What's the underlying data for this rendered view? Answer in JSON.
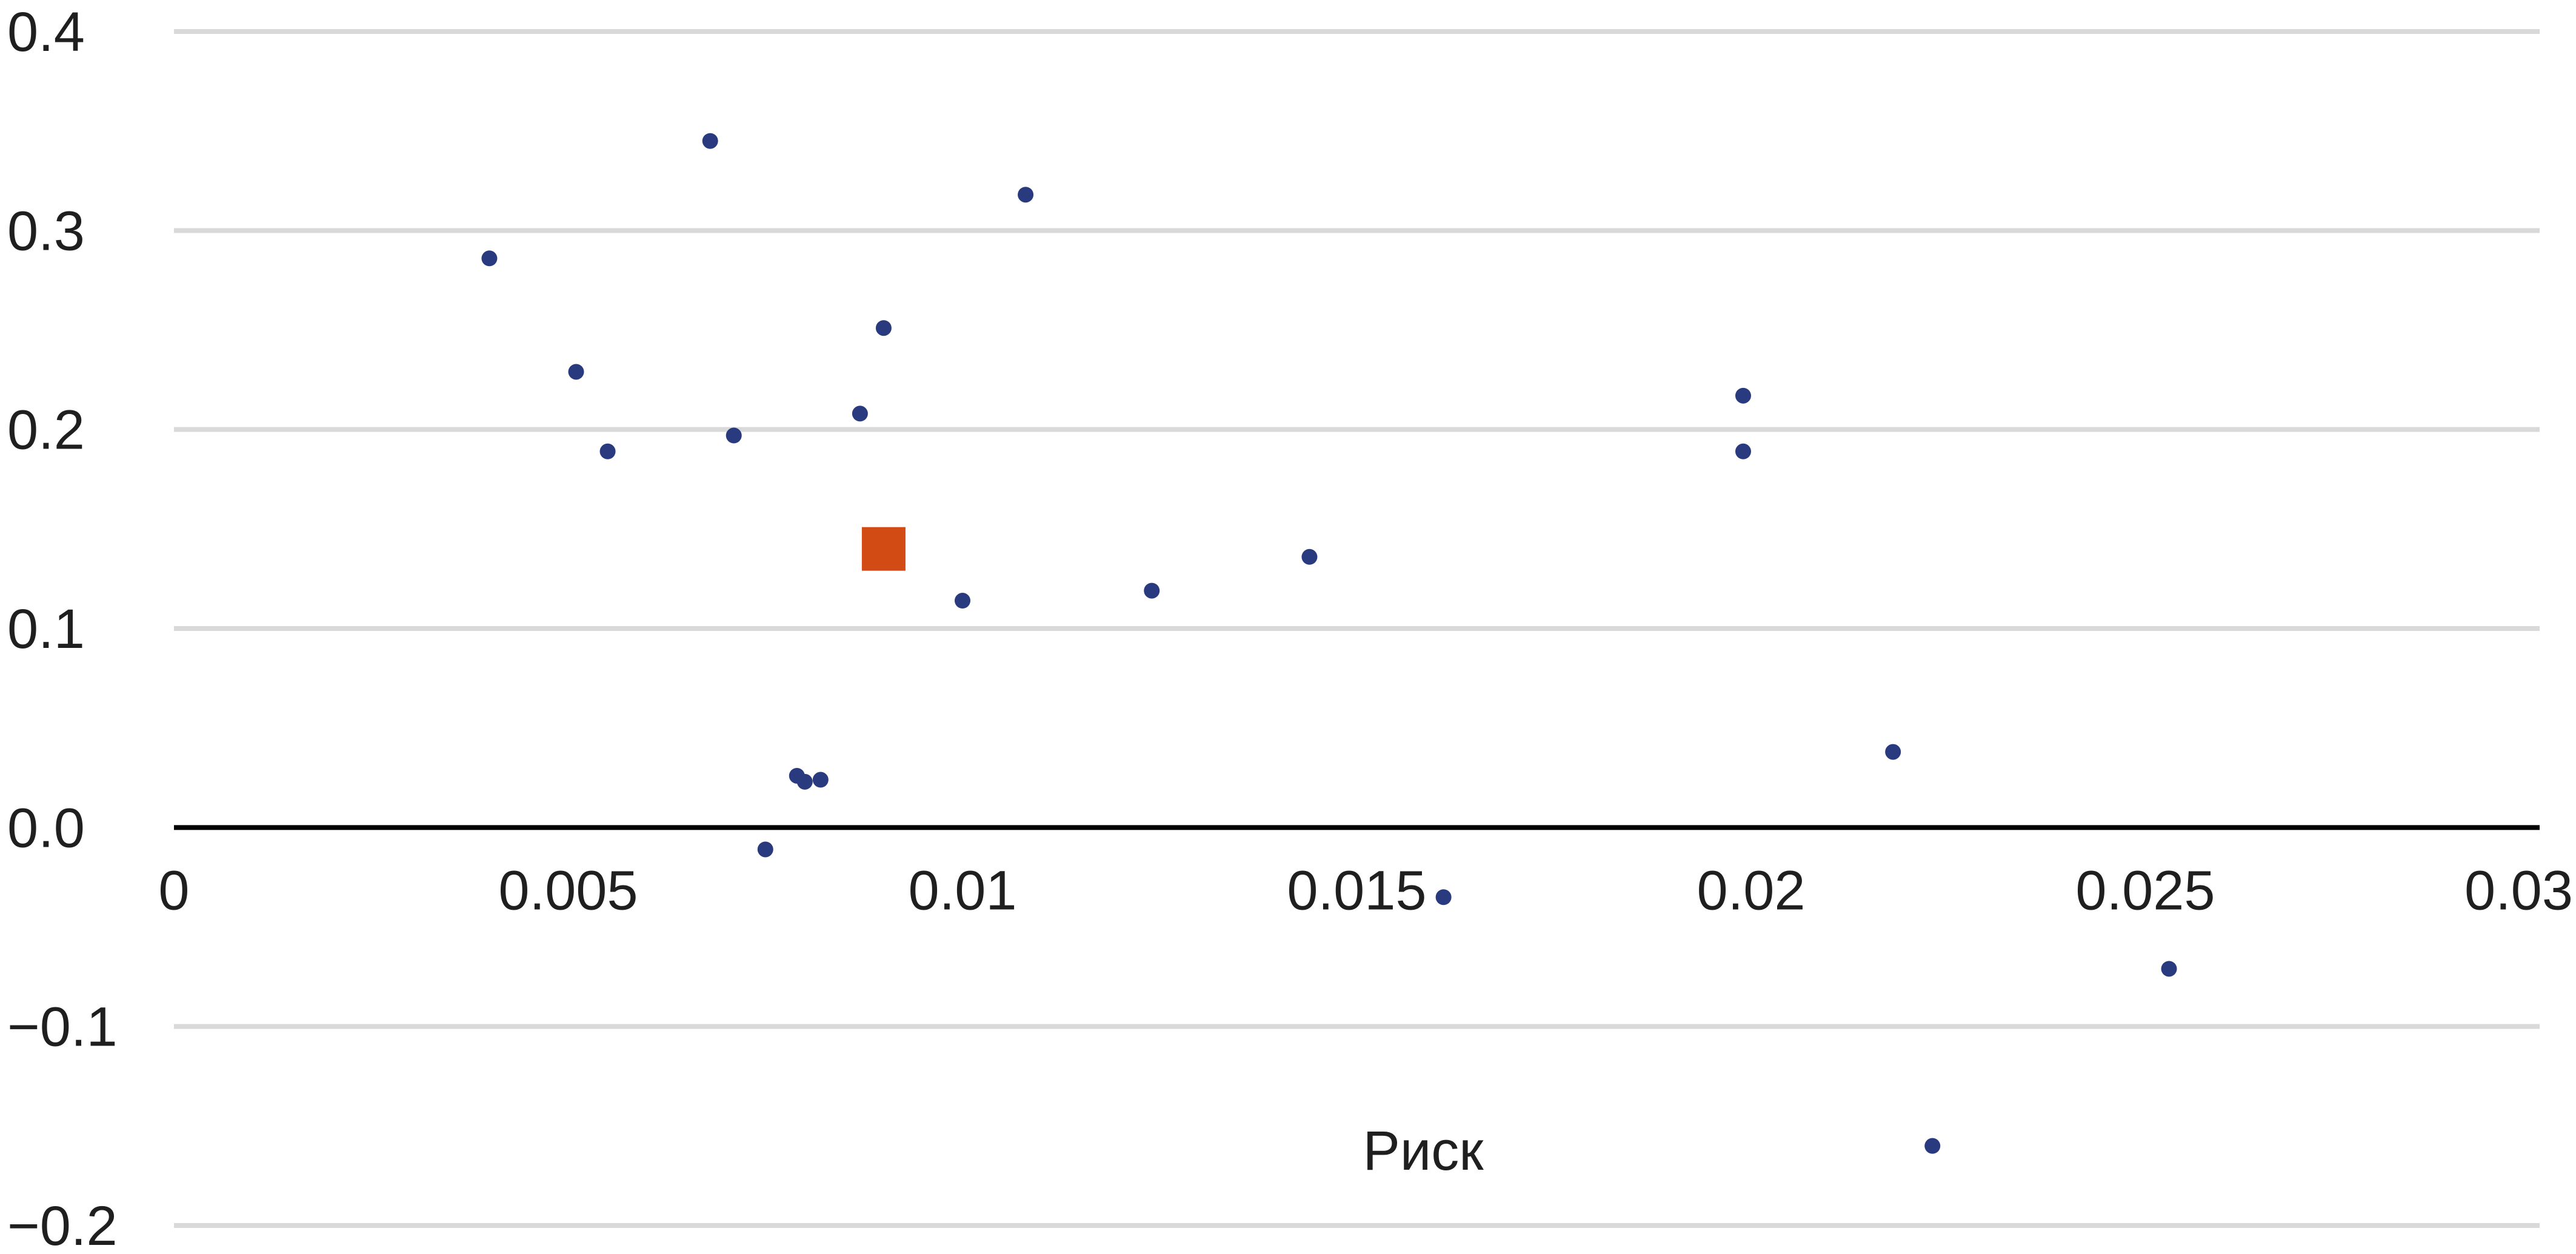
{
  "chart_data": {
    "type": "scatter",
    "title": "",
    "xlabel": "Риск",
    "ylabel": "",
    "xlim": [
      0,
      0.03
    ],
    "ylim": [
      -0.2,
      0.4
    ],
    "x_ticks": [
      0,
      0.005,
      0.01,
      0.015,
      0.02,
      0.025,
      0.03
    ],
    "x_tick_labels": [
      "0",
      "0.005",
      "0.01",
      "0.015",
      "0.02",
      "0.025",
      "0.03"
    ],
    "y_ticks": [
      0.4,
      0.3,
      0.2,
      0.1,
      0.0,
      -0.1,
      -0.2
    ],
    "y_tick_labels": [
      "0.4",
      "0.3",
      "0.2",
      "0.1",
      "0.0",
      "−0.1",
      "−0.2"
    ],
    "grid": true,
    "legend": "none",
    "series": [
      {
        "marker": "circle",
        "color": "#2a3a7e",
        "points": [
          {
            "x": 0.004,
            "y": 0.286
          },
          {
            "x": 0.0051,
            "y": 0.229
          },
          {
            "x": 0.0055,
            "y": 0.189
          },
          {
            "x": 0.0068,
            "y": 0.345
          },
          {
            "x": 0.0071,
            "y": 0.197
          },
          {
            "x": 0.0075,
            "y": -0.011
          },
          {
            "x": 0.0079,
            "y": 0.026
          },
          {
            "x": 0.008,
            "y": 0.023
          },
          {
            "x": 0.0082,
            "y": 0.024
          },
          {
            "x": 0.0087,
            "y": 0.208
          },
          {
            "x": 0.009,
            "y": 0.251
          },
          {
            "x": 0.01,
            "y": 0.114
          },
          {
            "x": 0.0108,
            "y": 0.318
          },
          {
            "x": 0.0124,
            "y": 0.119
          },
          {
            "x": 0.0144,
            "y": 0.136
          },
          {
            "x": 0.0161,
            "y": -0.035
          },
          {
            "x": 0.0199,
            "y": 0.217
          },
          {
            "x": 0.0199,
            "y": 0.189
          },
          {
            "x": 0.0218,
            "y": 0.038
          },
          {
            "x": 0.0223,
            "y": -0.16
          },
          {
            "x": 0.0253,
            "y": -0.071
          }
        ]
      },
      {
        "marker": "square",
        "color": "#d24a14",
        "points": [
          {
            "x": 0.009,
            "y": 0.14
          }
        ]
      }
    ]
  }
}
